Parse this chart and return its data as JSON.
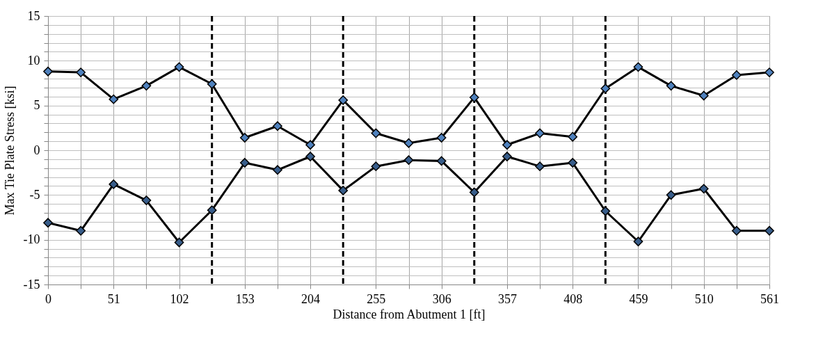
{
  "chart_data": {
    "type": "line",
    "xlabel": "Distance from Abutment 1 [ft]",
    "ylabel": "Max Tie Plate Stress [ksi]",
    "x": [
      0,
      25.5,
      51,
      76.5,
      102,
      127.5,
      153,
      178.5,
      204,
      229.5,
      255,
      280.5,
      306,
      331.5,
      357,
      382.5,
      408,
      433.5,
      459,
      484.5,
      510,
      535.5,
      561
    ],
    "series": [
      {
        "color": "#4f81bd",
        "values": [
          8.8,
          8.7,
          5.7,
          7.2,
          9.3,
          7.4,
          1.4,
          2.7,
          0.6,
          5.6,
          1.9,
          0.8,
          1.4,
          5.9,
          0.6,
          1.9,
          1.5,
          6.9,
          9.3,
          7.2,
          6.1,
          8.4,
          8.7
        ]
      },
      {
        "color": "#385d8a",
        "values": [
          -8.1,
          -9.0,
          -3.8,
          -5.6,
          -10.3,
          -6.7,
          -1.4,
          -2.2,
          -0.7,
          -4.5,
          -1.8,
          -1.1,
          -1.2,
          -4.7,
          -0.7,
          -1.8,
          -1.4,
          -6.8,
          -10.2,
          -5.0,
          -4.3,
          -9.0,
          -9.0
        ]
      }
    ],
    "xlim": [
      0,
      561
    ],
    "xticks": [
      0,
      {
        "value": 25.5,
        "label": null
      },
      51,
      {
        "value": 76.5,
        "label": null
      },
      102,
      153,
      {
        "value": 178.5,
        "label": null
      },
      204,
      255,
      {
        "value": 280.5,
        "label": null
      },
      306,
      357,
      {
        "value": 382.5,
        "label": null
      },
      408,
      459,
      {
        "value": 484.5,
        "label": null
      },
      510,
      {
        "value": 535.5,
        "label": null
      },
      561
    ],
    "ylim": [
      -15,
      15
    ],
    "yticks": [
      -15,
      {
        "value": -14,
        "label": null
      },
      {
        "value": -13,
        "label": null
      },
      {
        "value": -12,
        "label": null
      },
      {
        "value": -11,
        "label": null
      },
      -10,
      {
        "value": -9,
        "label": null
      },
      {
        "value": -8,
        "label": null
      },
      {
        "value": -7,
        "label": null
      },
      {
        "value": -6,
        "label": null
      },
      -5,
      {
        "value": -4,
        "label": null
      },
      {
        "value": -3,
        "label": null
      },
      {
        "value": -2,
        "label": null
      },
      {
        "value": -1,
        "label": null
      },
      0,
      {
        "value": 1,
        "label": null
      },
      {
        "value": 2,
        "label": null
      },
      {
        "value": 3,
        "label": null
      },
      {
        "value": 4,
        "label": null
      },
      5,
      {
        "value": 6,
        "label": null
      },
      {
        "value": 7,
        "label": null
      },
      {
        "value": 8,
        "label": null
      },
      {
        "value": 9,
        "label": null
      },
      10,
      {
        "value": 11,
        "label": null
      },
      {
        "value": 12,
        "label": null
      },
      {
        "value": 13,
        "label": null
      },
      {
        "value": 14,
        "label": null
      },
      15
    ],
    "grid": true,
    "marker": "diamond",
    "line_style": "solid",
    "ref_lines": [
      {
        "axis": "x",
        "value": 127.5,
        "color": "#000000",
        "line_style": "dashed"
      },
      {
        "axis": "x",
        "value": 229.5,
        "color": "#000000",
        "line_style": "dashed"
      },
      {
        "axis": "x",
        "value": 331.5,
        "color": "#000000",
        "line_style": "dashed"
      },
      {
        "axis": "x",
        "value": 433.5,
        "color": "#000000",
        "line_style": "dashed"
      }
    ]
  }
}
